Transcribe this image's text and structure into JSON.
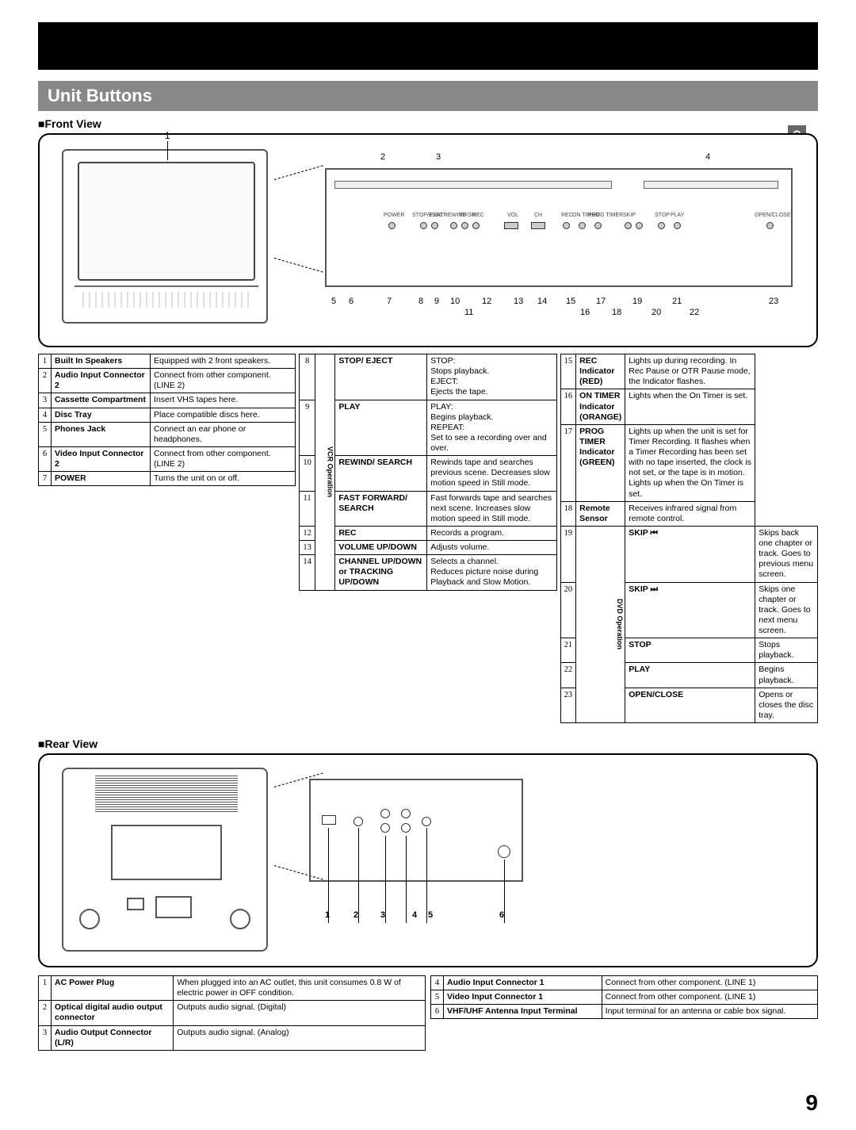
{
  "page_number": "9",
  "side_tab": "Getting Started",
  "section_title": "Unit Buttons",
  "front": {
    "heading": "Front View",
    "top_callouts": {
      "1": "1",
      "2": "2",
      "3": "3",
      "4": "4"
    },
    "bottom_callouts": [
      "5",
      "6",
      "7",
      "8",
      "9",
      "10",
      "11",
      "12",
      "13",
      "14",
      "15",
      "16",
      "17",
      "18",
      "19",
      "20",
      "21",
      "22",
      "23"
    ],
    "panel_labels": [
      "POWER",
      "STOP/EJECT",
      "PLAY",
      "REWIND",
      "FF/SR",
      "REC",
      "VOL",
      "CH",
      "REC",
      "ON TIMER",
      "PROG TIMER",
      "SKIP",
      "STOP",
      "PLAY",
      "OPEN/CLOSE"
    ],
    "table_left": [
      {
        "n": "1",
        "name": "Built In Speakers",
        "desc": "Equipped with 2 front speakers."
      },
      {
        "n": "2",
        "name": "Audio Input Connector 2",
        "desc": "Connect from other component. (LINE 2)"
      },
      {
        "n": "3",
        "name": "Cassette Compartment",
        "desc": "Insert VHS tapes here."
      },
      {
        "n": "4",
        "name": "Disc Tray",
        "desc": "Place compatible discs here."
      },
      {
        "n": "5",
        "name": "Phones Jack",
        "desc": "Connect an ear phone or headphones."
      },
      {
        "n": "6",
        "name": "Video Input Connector 2",
        "desc": "Connect from other component. (LINE 2)"
      },
      {
        "n": "7",
        "name": "POWER",
        "desc": "Turns the unit on or off."
      }
    ],
    "vcr_label": "VCR Operation",
    "table_mid": [
      {
        "n": "8",
        "name": "STOP/ EJECT",
        "desc": "STOP:\nStops playback.\nEJECT:\nEjects the tape."
      },
      {
        "n": "9",
        "name": "PLAY",
        "desc": "PLAY:\nBegins playback.\nREPEAT:\nSet to see a recording over and over."
      },
      {
        "n": "10",
        "name": "REWIND/ SEARCH",
        "desc": "Rewinds tape and searches previous scene. Decreases slow motion speed in Still mode."
      },
      {
        "n": "11",
        "name": "FAST FORWARD/ SEARCH",
        "desc": "Fast forwards tape and searches next scene. Increases slow motion speed in Still mode."
      },
      {
        "n": "12",
        "name": "REC",
        "desc": "Records a program."
      },
      {
        "n": "13",
        "name": "VOLUME UP/DOWN",
        "desc": "Adjusts volume."
      },
      {
        "n": "14",
        "name": "CHANNEL UP/DOWN or TRACKING UP/DOWN",
        "desc": "Selects a channel.\nReduces picture noise during Playback and Slow Motion."
      }
    ],
    "dvd_label": "DVD Operation",
    "table_right": [
      {
        "n": "15",
        "name": "REC Indicator (RED)",
        "desc": "Lights up during recording. In Rec Pause or OTR Pause mode, the Indicator flashes."
      },
      {
        "n": "16",
        "name": "ON TIMER Indicator (ORANGE)",
        "desc": "Lights when the On Timer is set."
      },
      {
        "n": "17",
        "name": "PROG TIMER Indicator (GREEN)",
        "desc": "Lights up when the unit is set for Timer Recording. It flashes when a Timer Recording has been set with no tape inserted, the clock is not set, or the tape is in motion. Lights up when the On Timer is set."
      },
      {
        "n": "18",
        "name": "Remote Sensor",
        "desc": "Receives infrared signal from remote control."
      },
      {
        "n": "19",
        "name": "SKIP ⏮",
        "desc": "Skips back one chapter or track. Goes to previous menu screen."
      },
      {
        "n": "20",
        "name": "SKIP ⏭",
        "desc": "Skips one chapter or track. Goes to next menu screen."
      },
      {
        "n": "21",
        "name": "STOP",
        "desc": "Stops playback."
      },
      {
        "n": "22",
        "name": "PLAY",
        "desc": "Begins playback."
      },
      {
        "n": "23",
        "name": "OPEN/CLOSE",
        "desc": "Opens or closes the disc tray."
      }
    ]
  },
  "rear": {
    "heading": "Rear View",
    "callouts": [
      "1",
      "2",
      "3",
      "4",
      "5",
      "6"
    ],
    "table_left": [
      {
        "n": "1",
        "name": "AC Power Plug",
        "desc": "When plugged into an AC outlet, this unit consumes 0.8 W of electric power in OFF condition."
      },
      {
        "n": "2",
        "name": "Optical digital audio output connector",
        "desc": "Outputs audio signal. (Digital)"
      },
      {
        "n": "3",
        "name": "Audio Output Connector (L/R)",
        "desc": "Outputs audio signal. (Analog)"
      }
    ],
    "table_right": [
      {
        "n": "4",
        "name": "Audio Input Connector 1",
        "desc": "Connect from other component. (LINE 1)"
      },
      {
        "n": "5",
        "name": "Video Input Connector 1",
        "desc": "Connect from other component. (LINE 1)"
      },
      {
        "n": "6",
        "name": "VHF/UHF Antenna Input Terminal",
        "desc": "Input terminal for an antenna or cable box signal."
      }
    ]
  }
}
